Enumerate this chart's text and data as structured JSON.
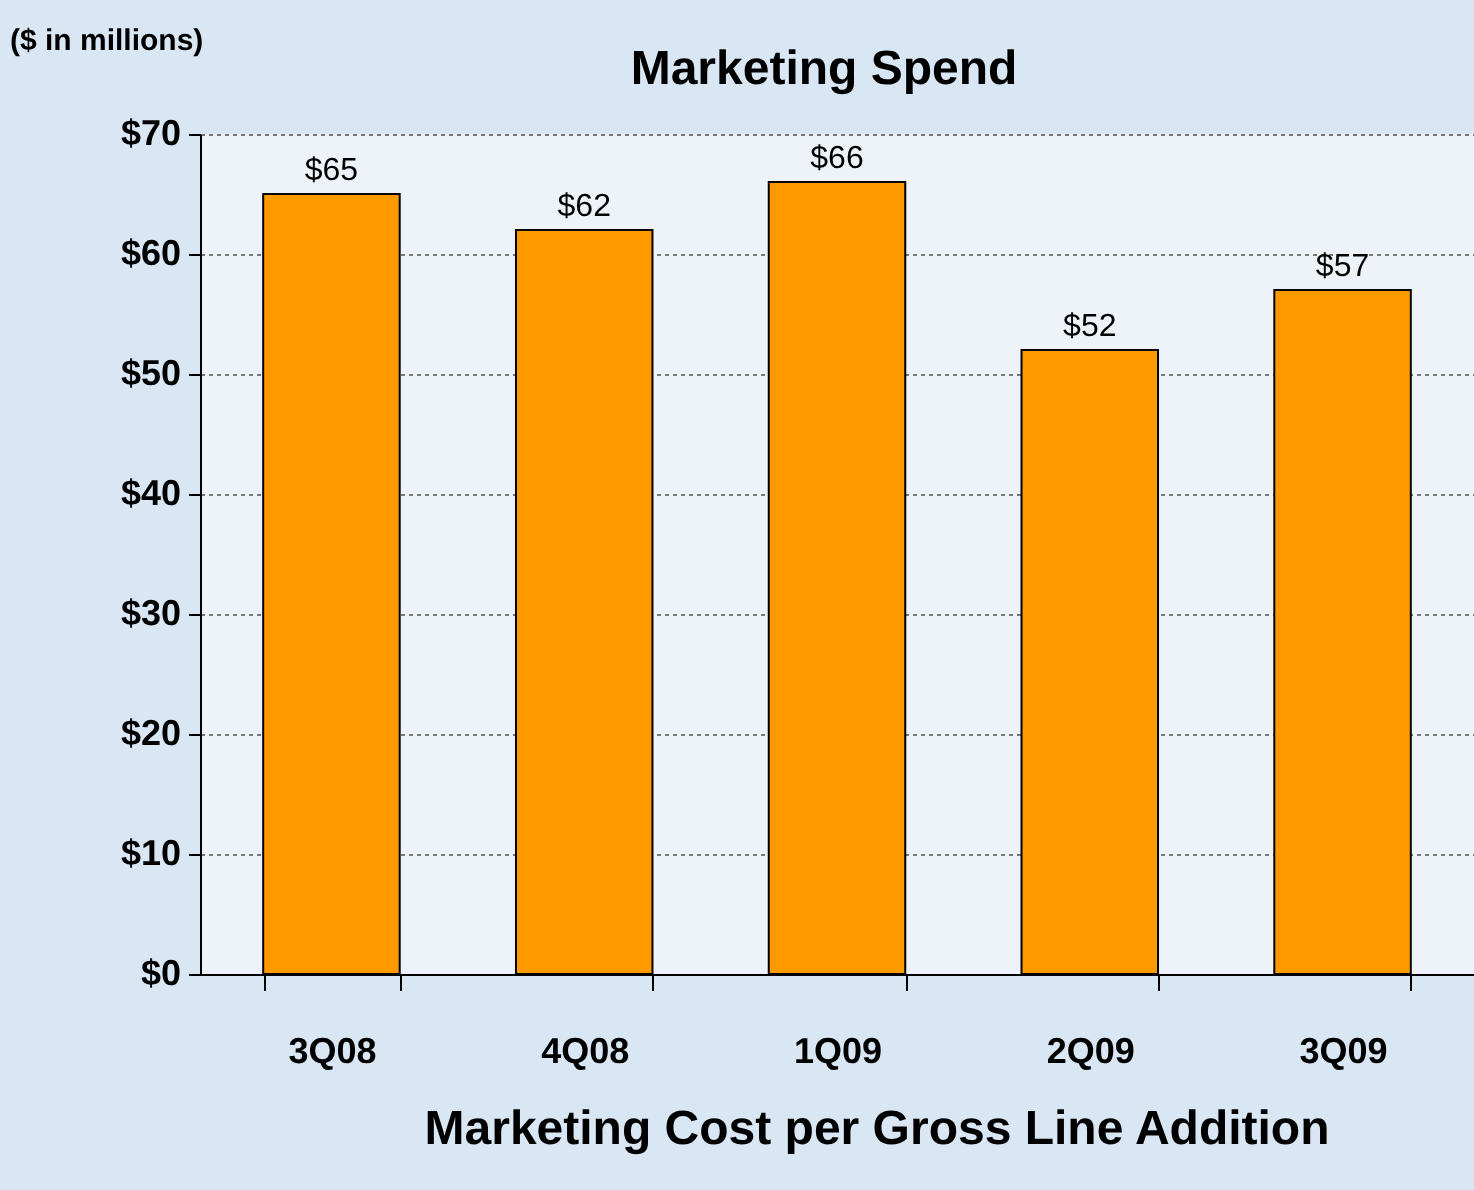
{
  "chart_data": {
    "type": "bar",
    "title": "Marketing Spend",
    "categories": [
      "3Q08",
      "4Q08",
      "1Q09",
      "2Q09",
      "3Q09"
    ],
    "values": [
      65,
      62,
      66,
      52,
      57
    ],
    "value_labels": [
      "$65",
      "$62",
      "$66",
      "$52",
      "$57"
    ],
    "color": "#ff9900",
    "ylim": [
      0,
      70
    ],
    "yticks": [
      {
        "value": 0,
        "label": "$0"
      },
      {
        "value": 10,
        "label": "$10"
      },
      {
        "value": 20,
        "label": "$20"
      },
      {
        "value": 30,
        "label": "$30"
      },
      {
        "value": 40,
        "label": "$40"
      },
      {
        "value": 50,
        "label": "$50"
      },
      {
        "value": 60,
        "label": "$60"
      },
      {
        "value": 70,
        "label": "$70"
      }
    ],
    "grid": "y",
    "annotations": [
      "($ in millions)",
      "Marketing Cost per Gross Line Addition"
    ]
  }
}
